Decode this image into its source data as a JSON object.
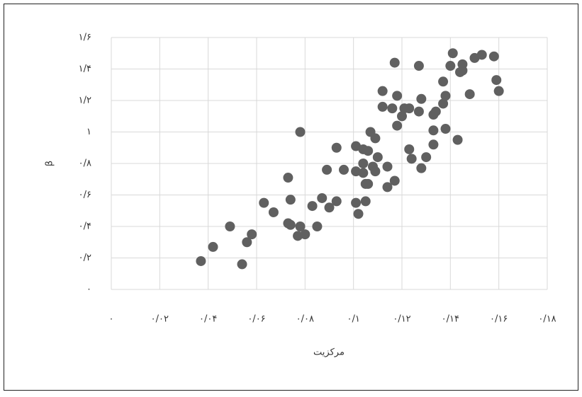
{
  "chart_data": {
    "type": "scatter",
    "x_label": "مرکزیت",
    "y_label": "β",
    "color": "#606060",
    "grid": true,
    "xlim": [
      0,
      0.18
    ],
    "ylim": [
      0,
      1.6
    ],
    "xticks": [
      {
        "value": 0,
        "label": "۰"
      },
      {
        "value": 0.02,
        "label": "۰/۰۲"
      },
      {
        "value": 0.04,
        "label": "۰/۰۴"
      },
      {
        "value": 0.06,
        "label": "۰/۰۶"
      },
      {
        "value": 0.08,
        "label": "۰/۰۸"
      },
      {
        "value": 0.1,
        "label": "۰/۱"
      },
      {
        "value": 0.12,
        "label": "۰/۱۲"
      },
      {
        "value": 0.14,
        "label": "۰/۱۴"
      },
      {
        "value": 0.16,
        "label": "۰/۱۶"
      },
      {
        "value": 0.18,
        "label": "۰/۱۸"
      }
    ],
    "yticks": [
      {
        "value": 0,
        "label": "۰"
      },
      {
        "value": 0.2,
        "label": "۰/۲"
      },
      {
        "value": 0.4,
        "label": "۰/۴"
      },
      {
        "value": 0.6,
        "label": "۰/۶"
      },
      {
        "value": 0.8,
        "label": "۰/۸"
      },
      {
        "value": 1,
        "label": "۱"
      },
      {
        "value": 1.2,
        "label": "۱/۲"
      },
      {
        "value": 1.4,
        "label": "۱/۴"
      },
      {
        "value": 1.6,
        "label": "۱/۶"
      }
    ],
    "x": [
      0.037,
      0.042,
      0.049,
      0.054,
      0.056,
      0.058,
      0.063,
      0.067,
      0.073,
      0.074,
      0.073,
      0.074,
      0.077,
      0.078,
      0.08,
      0.078,
      0.083,
      0.085,
      0.087,
      0.089,
      0.09,
      0.093,
      0.093,
      0.096,
      0.101,
      0.101,
      0.101,
      0.102,
      0.104,
      0.104,
      0.104,
      0.105,
      0.105,
      0.106,
      0.106,
      0.107,
      0.108,
      0.109,
      0.109,
      0.11,
      0.112,
      0.112,
      0.114,
      0.114,
      0.116,
      0.117,
      0.117,
      0.118,
      0.118,
      0.12,
      0.121,
      0.123,
      0.123,
      0.124,
      0.127,
      0.127,
      0.128,
      0.128,
      0.13,
      0.133,
      0.133,
      0.133,
      0.134,
      0.137,
      0.137,
      0.138,
      0.138,
      0.14,
      0.141,
      0.143,
      0.144,
      0.145,
      0.145,
      0.148,
      0.15,
      0.153,
      0.158,
      0.159,
      0.16
    ],
    "values": [
      0.18,
      0.27,
      0.4,
      0.16,
      0.3,
      0.35,
      0.55,
      0.49,
      0.71,
      0.57,
      0.42,
      0.41,
      0.34,
      0.4,
      0.35,
      1.0,
      0.53,
      0.4,
      0.58,
      0.76,
      0.52,
      0.9,
      0.56,
      0.76,
      0.91,
      0.75,
      0.55,
      0.48,
      0.8,
      0.74,
      0.89,
      0.67,
      0.56,
      0.67,
      0.88,
      1.0,
      0.78,
      0.96,
      0.75,
      0.84,
      1.16,
      1.26,
      0.78,
      0.65,
      1.15,
      0.69,
      1.44,
      1.04,
      1.23,
      1.1,
      1.15,
      1.15,
      0.89,
      0.83,
      1.42,
      1.13,
      1.21,
      0.77,
      0.84,
      1.11,
      1.01,
      0.92,
      1.13,
      1.18,
      1.32,
      1.02,
      1.23,
      1.42,
      1.5,
      0.95,
      1.38,
      1.39,
      1.43,
      1.24,
      1.47,
      1.49,
      1.48,
      1.33,
      1.26
    ]
  }
}
